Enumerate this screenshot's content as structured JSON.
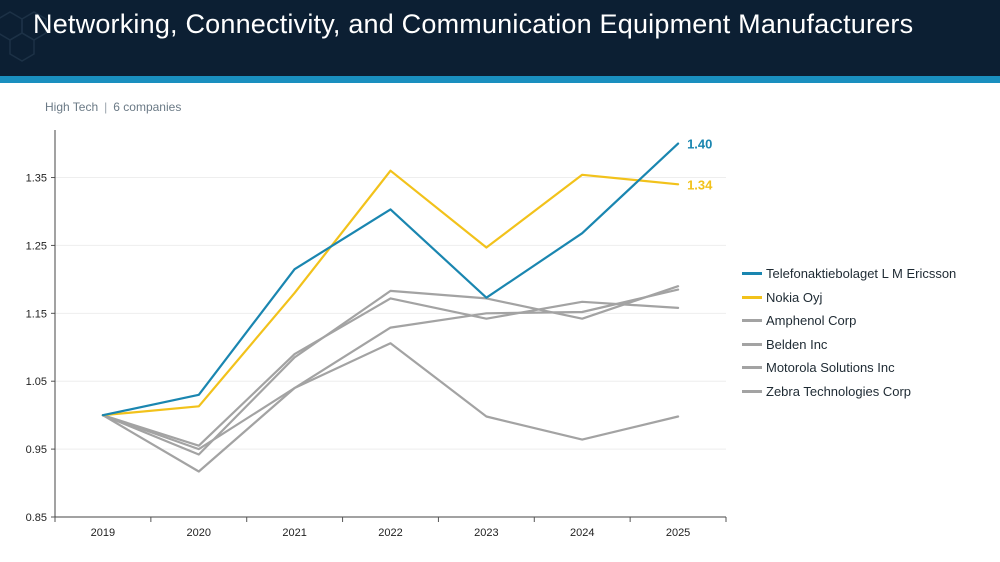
{
  "header": {
    "title": "Networking, Connectivity, and Communication Equipment Manufacturers"
  },
  "subtitle": {
    "sector": "High Tech",
    "separator": "|",
    "count": "6 companies"
  },
  "colors": {
    "header_bg": "#0c1f33",
    "accent_stripe": "#1a8fbf",
    "ericsson": "#1a86b0",
    "nokia": "#f2c21b",
    "peer": "#a3a3a3"
  },
  "chart_data": {
    "type": "line",
    "x": [
      "2019",
      "2020",
      "2021",
      "2022",
      "2023",
      "2024",
      "2025"
    ],
    "ylim": [
      0.85,
      1.42
    ],
    "yticks": [
      "0.85",
      "0.95",
      "1.05",
      "1.15",
      "1.25",
      "1.35"
    ],
    "grid": true,
    "legend_position": "right",
    "series": [
      {
        "name": "Telefonaktiebolaget L M Ericsson",
        "color": "#1a86b0",
        "values": [
          1.0,
          1.03,
          1.215,
          1.303,
          1.173,
          1.268,
          1.4
        ],
        "end_label": "1.40"
      },
      {
        "name": "Nokia Oyj",
        "color": "#f2c21b",
        "values": [
          1.0,
          1.013,
          1.18,
          1.36,
          1.247,
          1.354,
          1.34
        ],
        "end_label": "1.34"
      },
      {
        "name": "Amphenol Corp",
        "color": "#a3a3a3",
        "values": [
          1.0,
          0.955,
          1.09,
          1.172,
          1.142,
          1.167,
          1.158
        ]
      },
      {
        "name": "Belden Inc",
        "color": "#a3a3a3",
        "values": [
          1.0,
          0.917,
          1.04,
          1.106,
          0.998,
          0.964,
          0.998
        ]
      },
      {
        "name": "Motorola Solutions Inc",
        "color": "#a3a3a3",
        "values": [
          1.0,
          0.942,
          1.085,
          1.183,
          1.172,
          1.142,
          1.19
        ]
      },
      {
        "name": "Zebra Technologies Corp",
        "color": "#a3a3a3",
        "values": [
          1.0,
          0.95,
          1.04,
          1.129,
          1.15,
          1.152,
          1.185
        ]
      }
    ]
  }
}
